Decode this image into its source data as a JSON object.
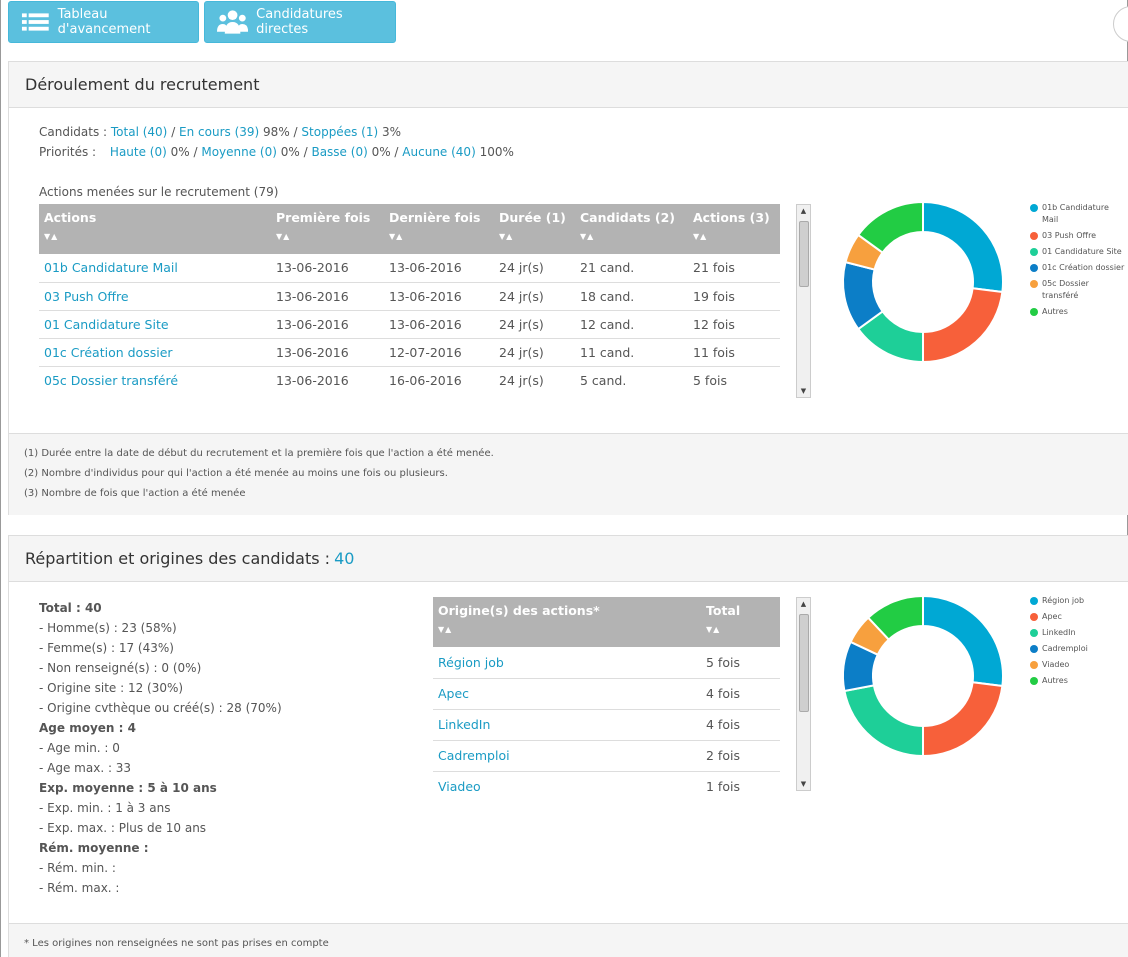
{
  "toolbar": {
    "btn_progress": "Tableau d'avancement",
    "btn_direct": "Candidatures directes"
  },
  "panel1": {
    "title": "Déroulement du recrutement",
    "candidats": {
      "label": "Candidats : ",
      "total": "Total (40)",
      "sep1": " / ",
      "encours": "En cours (39)",
      "encours_pct": " 98% / ",
      "stoppees": "Stoppées (1)",
      "stoppees_pct": " 3%"
    },
    "priorites": {
      "label": "Priorités : ",
      "haute": "Haute (0)",
      "haute_pct": " 0% / ",
      "moyenne": "Moyenne (0)",
      "moyenne_pct": " 0% / ",
      "basse": "Basse (0)",
      "basse_pct": " 0% / ",
      "aucune": "Aucune (40)",
      "aucune_pct": " 100%"
    },
    "actions_link": "Actions menées sur le recrutement (79)",
    "table": {
      "headers": [
        "Actions",
        "Première fois",
        "Dernière fois",
        "Durée (1)",
        "Candidats (2)",
        "Actions (3)"
      ],
      "sort_glyph": "▼▲",
      "rows": [
        [
          "01b Candidature Mail",
          "13-06-2016",
          "13-06-2016",
          "24 jr(s)",
          "21 cand.",
          "21 fois"
        ],
        [
          "03 Push Offre",
          "13-06-2016",
          "13-06-2016",
          "24 jr(s)",
          "18 cand.",
          "19 fois"
        ],
        [
          "01 Candidature Site",
          "13-06-2016",
          "13-06-2016",
          "24 jr(s)",
          "12 cand.",
          "12 fois"
        ],
        [
          "01c Création dossier",
          "13-06-2016",
          "12-07-2016",
          "24 jr(s)",
          "11 cand.",
          "11 fois"
        ],
        [
          "05c Dossier transféré",
          "13-06-2016",
          "16-06-2016",
          "24 jr(s)",
          "5 cand.",
          "5 fois"
        ]
      ]
    },
    "chart_data": {
      "type": "pie",
      "donut": true,
      "categories": [
        "01b Candidature Mail",
        "03 Push Offre",
        "01 Candidature Site",
        "01c Création dossier",
        "05c Dossier transféré",
        "Autres"
      ],
      "values": [
        27,
        23,
        15,
        14,
        6,
        15
      ],
      "colors": [
        "#00a8d4",
        "#f7603a",
        "#1ecf98",
        "#0c7ec7",
        "#f7a03e",
        "#22cc44"
      ],
      "legend": "right"
    },
    "notes": [
      "(1) Durée entre la date de début du recrutement et la première fois que l'action a été menée.",
      "(2) Nombre d'individus pour qui l'action a été menée au moins une fois ou plusieurs.",
      "(3) Nombre de fois que l'action a été menée"
    ]
  },
  "panel2": {
    "title": "Répartition et origines des candidats : ",
    "title_count": "40",
    "summary": [
      {
        "text": "Total : 40",
        "bold": true
      },
      {
        "text": "- Homme(s) : 23 (58%)",
        "bold": false
      },
      {
        "text": "- Femme(s) : 17 (43%)",
        "bold": false
      },
      {
        "text": "- Non renseigné(s) : 0 (0%)",
        "bold": false
      },
      {
        "text": "- Origine site : 12 (30%)",
        "bold": false
      },
      {
        "text": "- Origine cvthèque ou créé(s) : 28 (70%)",
        "bold": false
      },
      {
        "text": "Age moyen : 4",
        "bold": true
      },
      {
        "text": "- Age min. : 0",
        "bold": false
      },
      {
        "text": "- Age max. : 33",
        "bold": false
      },
      {
        "text": "Exp. moyenne : 5 à 10 ans",
        "bold": true
      },
      {
        "text": "- Exp. min. : 1 à 3 ans",
        "bold": false
      },
      {
        "text": "- Exp. max. : Plus de 10 ans",
        "bold": false
      },
      {
        "text": "Rém. moyenne :",
        "bold": true
      },
      {
        "text": "- Rém. min. :",
        "bold": false
      },
      {
        "text": "- Rém. max. :",
        "bold": false
      }
    ],
    "table": {
      "headers": [
        "Origine(s) des actions*",
        "Total"
      ],
      "rows": [
        [
          "Région job",
          "5 fois"
        ],
        [
          "Apec",
          "4 fois"
        ],
        [
          "LinkedIn",
          "4 fois"
        ],
        [
          "Cadremploi",
          "2 fois"
        ],
        [
          "Viadeo",
          "1 fois"
        ]
      ]
    },
    "chart_data": {
      "type": "pie",
      "donut": true,
      "categories": [
        "Région job",
        "Apec",
        "LinkedIn",
        "Cadremploi",
        "Viadeo",
        "Autres"
      ],
      "values": [
        27,
        23,
        22,
        10,
        6,
        12
      ],
      "colors": [
        "#00a8d4",
        "#f7603a",
        "#1ecf98",
        "#0c7ec7",
        "#f7a03e",
        "#22cc44"
      ],
      "legend": "right"
    },
    "note": "* Les origines non renseignées ne sont pas prises en compte"
  }
}
